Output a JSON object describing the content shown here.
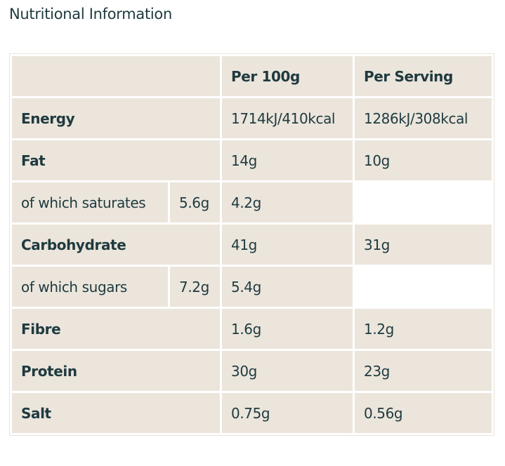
{
  "title": "Nutritional Information",
  "header": {
    "per_100g": "Per 100g",
    "per_serving": "Per Serving"
  },
  "rows": [
    {
      "name": "Energy",
      "per_100g": "1714kJ/410kcal",
      "per_serving": "1286kJ/308kcal"
    },
    {
      "name": "Fat",
      "per_100g": "14g",
      "per_serving": "10g"
    },
    {
      "name": "of which saturates",
      "extra": "5.6g",
      "per_100g": "4.2g",
      "per_serving": ""
    },
    {
      "name": "Carbohydrate",
      "per_100g": "41g",
      "per_serving": "31g"
    },
    {
      "name": "of which sugars",
      "extra": "7.2g",
      "per_100g": "5.4g",
      "per_serving": ""
    },
    {
      "name": "Fibre",
      "per_100g": "1.6g",
      "per_serving": "1.2g"
    },
    {
      "name": "Protein",
      "per_100g": "30g",
      "per_serving": "23g"
    },
    {
      "name": "Salt",
      "per_100g": "0.75g",
      "per_serving": "0.56g"
    }
  ]
}
